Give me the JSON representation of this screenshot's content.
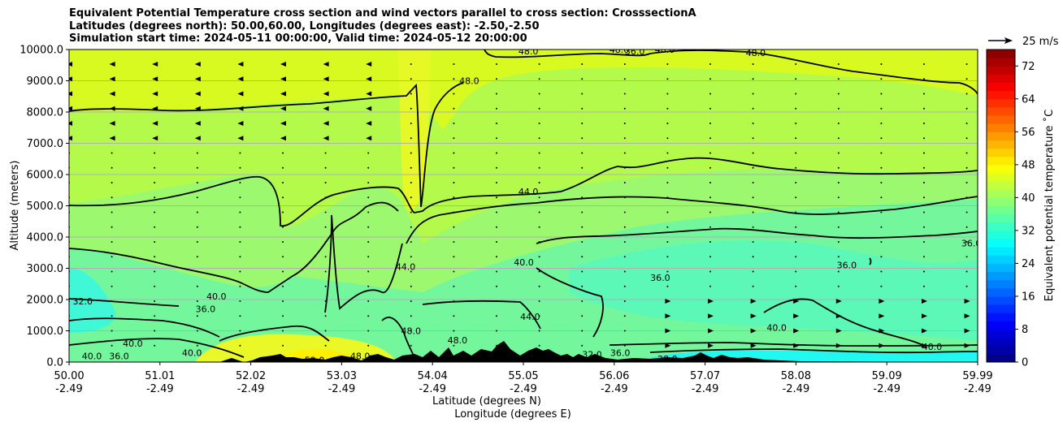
{
  "title_lines": [
    "Equivalent Potential Temperature cross section and wind vectors parallel to cross section: CrosssectionA",
    "Latitudes (degrees north): 50.00,60.00, Longitudes (degrees east): -2.50,-2.50",
    "Simulation start time: 2024-05-11 00:00:00, Valid time: 2024-05-12 20:00:00"
  ],
  "quiver_key": "25 m/s",
  "chart_data": {
    "type": "heatmap",
    "subtype": "cross-section contour with wind vectors",
    "xlabel_line1": "Latitude (degrees N)",
    "xlabel_line2": "Longitude (degrees E)",
    "ylabel": "Altitude (meters)",
    "ylim": [
      0,
      10000
    ],
    "xlim": [
      50.0,
      59.99
    ],
    "y_ticks": [
      "0.0",
      "1000.0",
      "2000.0",
      "3000.0",
      "4000.0",
      "5000.0",
      "6000.0",
      "7000.0",
      "8000.0",
      "9000.0",
      "10000.0"
    ],
    "x_ticks": [
      {
        "lat": "50.00",
        "lon": "-2.49"
      },
      {
        "lat": "51.01",
        "lon": "-2.49"
      },
      {
        "lat": "52.02",
        "lon": "-2.49"
      },
      {
        "lat": "53.03",
        "lon": "-2.49"
      },
      {
        "lat": "54.04",
        "lon": "-2.49"
      },
      {
        "lat": "55.05",
        "lon": "-2.49"
      },
      {
        "lat": "56.06",
        "lon": "-2.49"
      },
      {
        "lat": "57.07",
        "lon": "-2.49"
      },
      {
        "lat": "58.08",
        "lon": "-2.49"
      },
      {
        "lat": "59.09",
        "lon": "-2.49"
      },
      {
        "lat": "59.99",
        "lon": "-2.49"
      }
    ],
    "grid": "horizontal",
    "colorbar": {
      "label": "Equivalent potential temperature ˚C",
      "min": 0,
      "max": 76,
      "step": 2,
      "ticks": [
        "0",
        "8",
        "16",
        "24",
        "32",
        "40",
        "48",
        "56",
        "64",
        "72"
      ],
      "colormap": "jet"
    },
    "contour_labels": [
      {
        "text": "48.0",
        "lat": 55.05,
        "alt": 9950
      },
      {
        "text": "48.0",
        "lat": 56.05,
        "alt": 10000
      },
      {
        "text": "36.0",
        "lat": 56.22,
        "alt": 9950
      },
      {
        "text": "48.0",
        "lat": 56.55,
        "alt": 10000
      },
      {
        "text": "48.0",
        "lat": 57.55,
        "alt": 9900
      },
      {
        "text": "48.0",
        "lat": 54.4,
        "alt": 9000
      },
      {
        "text": "44.0",
        "lat": 55.05,
        "alt": 5450
      },
      {
        "text": "44.0",
        "lat": 53.7,
        "alt": 3050
      },
      {
        "text": "40.0",
        "lat": 55.0,
        "alt": 3200
      },
      {
        "text": "36.0",
        "lat": 56.5,
        "alt": 2700
      },
      {
        "text": "36.0",
        "lat": 58.55,
        "alt": 3100
      },
      {
        "text": "36.0",
        "lat": 59.92,
        "alt": 3800
      },
      {
        "text": "32.0",
        "lat": 50.15,
        "alt": 1950
      },
      {
        "text": "36.0",
        "lat": 51.5,
        "alt": 1700
      },
      {
        "text": "40.0",
        "lat": 51.62,
        "alt": 2100
      },
      {
        "text": "48.0",
        "lat": 53.76,
        "alt": 1000
      },
      {
        "text": "48.0",
        "lat": 54.27,
        "alt": 700
      },
      {
        "text": "44.0",
        "lat": 55.07,
        "alt": 1450
      },
      {
        "text": "40.0",
        "lat": 57.78,
        "alt": 1100
      },
      {
        "text": "40.0",
        "lat": 59.49,
        "alt": 500
      },
      {
        "text": "36.0",
        "lat": 56.06,
        "alt": 300
      },
      {
        "text": "28.0",
        "lat": 56.58,
        "alt": 100
      },
      {
        "text": "32.0",
        "lat": 55.75,
        "alt": 250
      },
      {
        "text": "52.0",
        "lat": 52.7,
        "alt": 60
      },
      {
        "text": "48.0",
        "lat": 53.2,
        "alt": 200
      },
      {
        "text": "40.0",
        "lat": 50.25,
        "alt": 200
      },
      {
        "text": "36.0",
        "lat": 50.55,
        "alt": 200
      },
      {
        "text": "40.0",
        "lat": 50.7,
        "alt": 600
      },
      {
        "text": "40.0",
        "lat": 51.35,
        "alt": 300
      }
    ]
  }
}
